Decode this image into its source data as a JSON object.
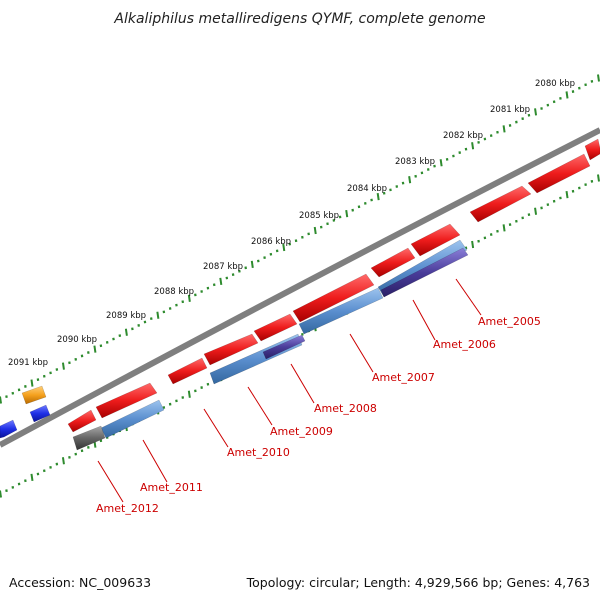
{
  "title": "Alkaliphilus metalliredigens QYMF, complete genome",
  "footer": {
    "accession": "Accession: NC_009633",
    "topology": "Topology: circular; Length: 4,929,566 bp; Genes: 4,763"
  },
  "colors": {
    "backbone": "#7f7f7f",
    "ticks": "#2e8b2e",
    "forward_cds": "#ee1c1c",
    "reverse_cds": "#5b8fcf",
    "reverse_cds_dark": "#4a3d9a",
    "pseudo_gene": "#666666",
    "orange_feature": "#f5a11e",
    "blue_feature": "#1f2fe6",
    "label": "#cc0000"
  },
  "scale_labels": [
    "2080 kbp",
    "2081 kbp",
    "2082 kbp",
    "2083 kbp",
    "2084 kbp",
    "2085 kbp",
    "2086 kbp",
    "2087 kbp",
    "2088 kbp",
    "2089 kbp",
    "2090 kbp",
    "2091 kbp"
  ],
  "gene_labels": [
    "Amet_2005",
    "Amet_2006",
    "Amet_2007",
    "Amet_2008",
    "Amet_2009",
    "Amet_2010",
    "Amet_2011",
    "Amet_2012"
  ]
}
